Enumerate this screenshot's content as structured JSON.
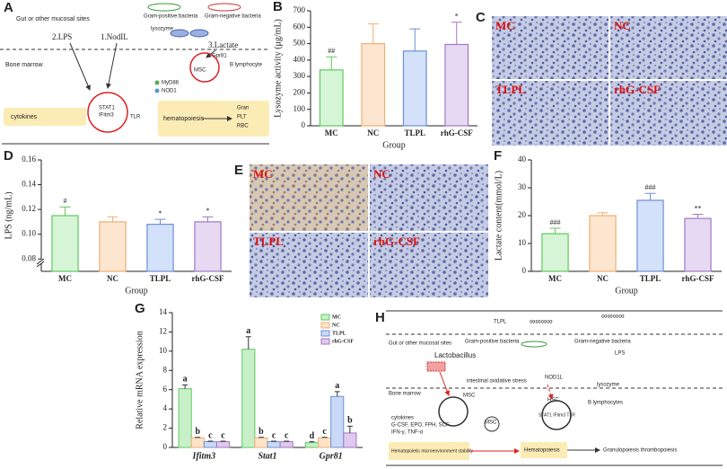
{
  "chart_data": [
    {
      "label": "B",
      "type": "bar",
      "ylabel": "Lysozyme activity (μg/mL)",
      "xlabel": "Group",
      "categories": [
        "MC",
        "NC",
        "TLPL",
        "rhG-CSF"
      ],
      "values": [
        340,
        500,
        455,
        495
      ],
      "errors": [
        80,
        120,
        135,
        135
      ],
      "annotations": [
        "##",
        null,
        null,
        "*"
      ],
      "colors": [
        "#d6f5d6",
        "#fde6cf",
        "#d3e1fa",
        "#e8d9f3"
      ],
      "edge_colors": [
        "#5fc85f",
        "#f0ae74",
        "#6d8fd4",
        "#9f78c4"
      ],
      "ylim": [
        0,
        700
      ],
      "yticks": [
        0,
        100,
        200,
        300,
        400,
        500,
        600,
        700
      ]
    },
    {
      "label": "D",
      "type": "bar",
      "ylabel": "LPS (ng/mL)",
      "xlabel": "Group",
      "categories": [
        "MC",
        "NC",
        "TLPL",
        "rhG-CSF"
      ],
      "values": [
        0.115,
        0.11,
        0.108,
        0.11
      ],
      "errors": [
        0.007,
        0.004,
        0.004,
        0.004
      ],
      "annotations": [
        "#",
        null,
        "*",
        "*"
      ],
      "colors": [
        "#d6f5d6",
        "#fde6cf",
        "#d3e1fa",
        "#e8d9f3"
      ],
      "edge_colors": [
        "#5fc85f",
        "#f0ae74",
        "#6d8fd4",
        "#9f78c4"
      ],
      "ylim": [
        0.07,
        0.16
      ],
      "yticks": [
        0.08,
        {
          "value": 0.1,
          "label": "0.10"
        },
        0.12,
        0.14,
        0.16
      ],
      "axis_break": true
    },
    {
      "label": "F",
      "type": "bar",
      "ylabel": "Lactate content(mmol/L)",
      "xlabel": "Group",
      "categories": [
        "MC",
        "NC",
        "TLPL",
        "rhG-CSF"
      ],
      "values": [
        13.5,
        20,
        25.5,
        19
      ],
      "errors": [
        2,
        1,
        2.5,
        1.5
      ],
      "annotations": [
        "###",
        null,
        "###",
        "**"
      ],
      "colors": [
        "#d6f5d6",
        "#fde6cf",
        "#d3e1fa",
        "#e8d9f3"
      ],
      "edge_colors": [
        "#5fc85f",
        "#f0ae74",
        "#6d8fd4",
        "#9f78c4"
      ],
      "ylim": [
        0,
        40
      ],
      "yticks": [
        0,
        10,
        20,
        30,
        40
      ]
    },
    {
      "label": "G",
      "type": "grouped_bar",
      "ylabel": "Relative mRNA expression",
      "categories": [
        "Ifitm3",
        "Stat1",
        "Gpr81"
      ],
      "series": [
        {
          "name": "MC",
          "color": "#c8f0c8",
          "edge_color": "#5fc85f",
          "values": [
            6.1,
            10.2,
            0.5
          ],
          "errors": [
            0.4,
            1.3,
            0.1
          ],
          "annotations": [
            "a",
            "a",
            "d"
          ]
        },
        {
          "name": "NC",
          "color": "#fde3c8",
          "edge_color": "#f0ae74",
          "values": [
            1,
            1,
            1
          ],
          "errors": [
            0.05,
            0.05,
            0.05
          ],
          "annotations": [
            "b",
            "b",
            "c"
          ]
        },
        {
          "name": "TLPL",
          "color": "#c9d9f7",
          "edge_color": "#6d8fd4",
          "values": [
            0.6,
            0.6,
            5.3
          ],
          "errors": [
            0.05,
            0.05,
            0.5
          ],
          "annotations": [
            "c",
            "c",
            "a"
          ]
        },
        {
          "name": "rhG-CSF",
          "color": "#dfc9ec",
          "edge_color": "#9f78c4",
          "values": [
            0.6,
            0.6,
            1.5
          ],
          "errors": [
            0.05,
            0.05,
            0.7
          ],
          "annotations": [
            "c",
            "c",
            "b"
          ]
        }
      ],
      "ylim": [
        0,
        14
      ],
      "yticks": [
        0,
        2,
        4,
        6,
        8,
        10,
        12,
        14
      ],
      "legend": "upper right"
    }
  ],
  "figure": {
    "panel_a": {
      "label": "A",
      "gut": "Gut or other mucosal sites",
      "gram_pos": "Gram-positive bacteria",
      "gram_neg": "Gram-negative bacteria",
      "lysozyme": "lysozyme",
      "lps": "2.LPS",
      "nod": "1.NodIL",
      "lactate": "3.Lactate",
      "bone": "Bone marrow",
      "blym": "B lymphocyte",
      "myd": "MyD88",
      "nod1": "NOD1",
      "stat": "STAT1",
      "ifitm": "IFitm3",
      "tlr": "TLR",
      "cyto": "cytokines",
      "hema": "hematopoiesis",
      "gran": "Gran",
      "plt": "PLT",
      "rbc": "RBC",
      "msc": "MSC",
      "gpr": "Gpr81"
    },
    "panel_c": {
      "label": "C",
      "imgs": [
        "MC",
        "NC",
        "TLPL",
        "rhG-CSF"
      ]
    },
    "panel_e": {
      "label": "E",
      "imgs": [
        "MC",
        "NC",
        "TLPL",
        "rhG-CSF"
      ]
    },
    "panel_h": {
      "label": "H",
      "tlpl": "TLPL",
      "gut": "Gut or other mucosal sites",
      "gram_pos": "Gram-positive bacteria",
      "gram_neg": "Gram-negative bacteria",
      "lacto": "Lactobacillus",
      "lps": "LPS",
      "stress": "intestinal oxidative stress",
      "bone": "Bone marrow",
      "nod": "NOD1L",
      "lyso": "lysozyme",
      "hsc": "HSC",
      "msc": "MSC",
      "stat": "STAT1 IFitm3 TLR",
      "blym": "B lymphocytes",
      "cyto": "cytokines",
      "cyto2": "G-CSF, EPO, FPH, SCF",
      "cyto3": "IFN-γ, TNF-α",
      "micro": "Hematopoietic microenvironment stability",
      "hema": "Hematopoiesis",
      "out": "Granulopoiesis thrombopoiesis"
    }
  }
}
